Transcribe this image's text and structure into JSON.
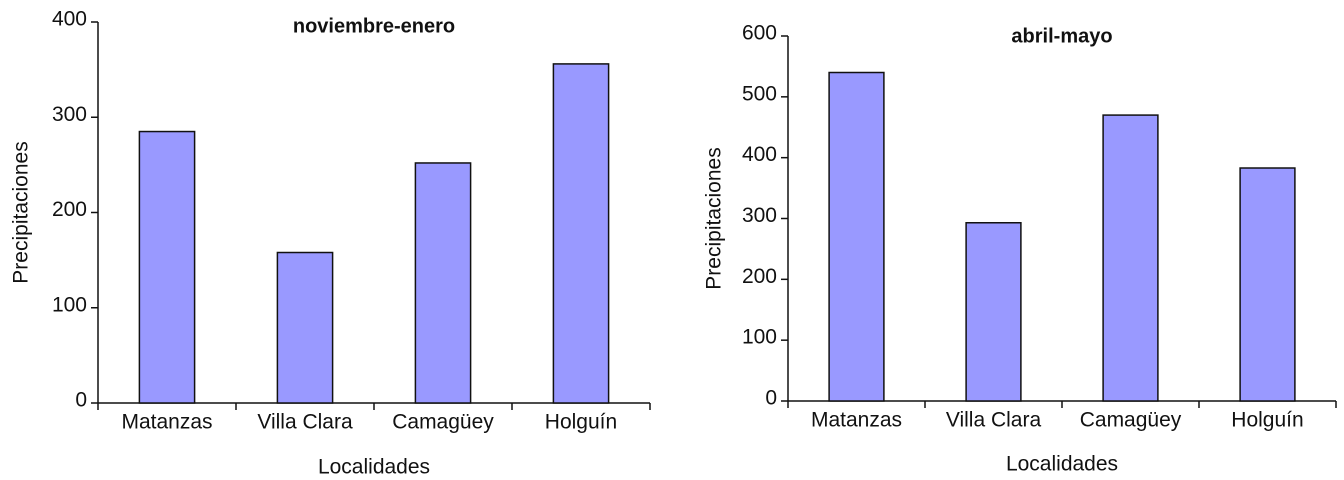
{
  "chart_data": [
    {
      "type": "bar",
      "title": "noviembre-enero",
      "x_label": "Localidades",
      "y_label": "Precipitaciones",
      "categories": [
        "Matanzas",
        "Villa Clara",
        "Camagüey",
        "Holguín"
      ],
      "values": [
        285,
        158,
        252,
        356
      ],
      "color": "#9999ff",
      "ylim": [
        0,
        400
      ],
      "yticks": [
        0,
        100,
        200,
        300,
        400
      ]
    },
    {
      "type": "bar",
      "title": "abril-mayo",
      "x_label": "Localidades",
      "y_label": "Precipitaciones",
      "categories": [
        "Matanzas",
        "Villa Clara",
        "Camagüey",
        "Holguín"
      ],
      "values": [
        540,
        293,
        470,
        383
      ],
      "color": "#9999ff",
      "ylim": [
        0,
        600
      ],
      "yticks": [
        0,
        100,
        200,
        300,
        400,
        500,
        600
      ]
    }
  ]
}
